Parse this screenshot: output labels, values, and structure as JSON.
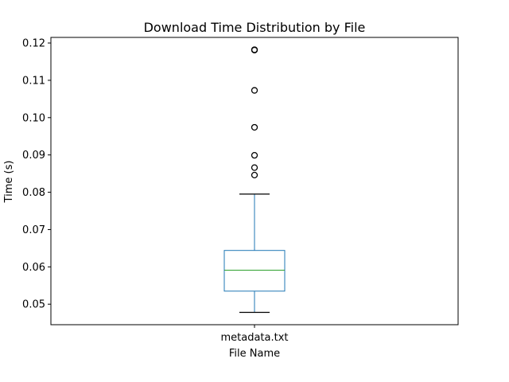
{
  "chart_data": {
    "type": "box",
    "title": "Download Time Distribution by File",
    "xlabel": "File Name",
    "ylabel": "Time (s)",
    "categories": [
      "metadata.txt"
    ],
    "ylim": [
      0.0445,
      0.1215
    ],
    "yticks": [
      0.05,
      0.06,
      0.07,
      0.08,
      0.09,
      0.1,
      0.11,
      0.12
    ],
    "ytick_labels": [
      "0.05",
      "0.06",
      "0.07",
      "0.08",
      "0.09",
      "0.10",
      "0.11",
      "0.12"
    ],
    "grid": false,
    "boxes": [
      {
        "category": "metadata.txt",
        "whisker_low": 0.0478,
        "q1": 0.0535,
        "median": 0.0591,
        "q3": 0.0644,
        "whisker_high": 0.0795,
        "outliers": [
          0.0846,
          0.0866,
          0.0899,
          0.0974,
          0.1073,
          0.1181,
          0.1182
        ]
      }
    ],
    "colors": {
      "box": "#1f77b4",
      "median": "#2ca02c",
      "whisker": "#1f77b4",
      "cap": "#000000",
      "outlier": "#000000"
    }
  }
}
